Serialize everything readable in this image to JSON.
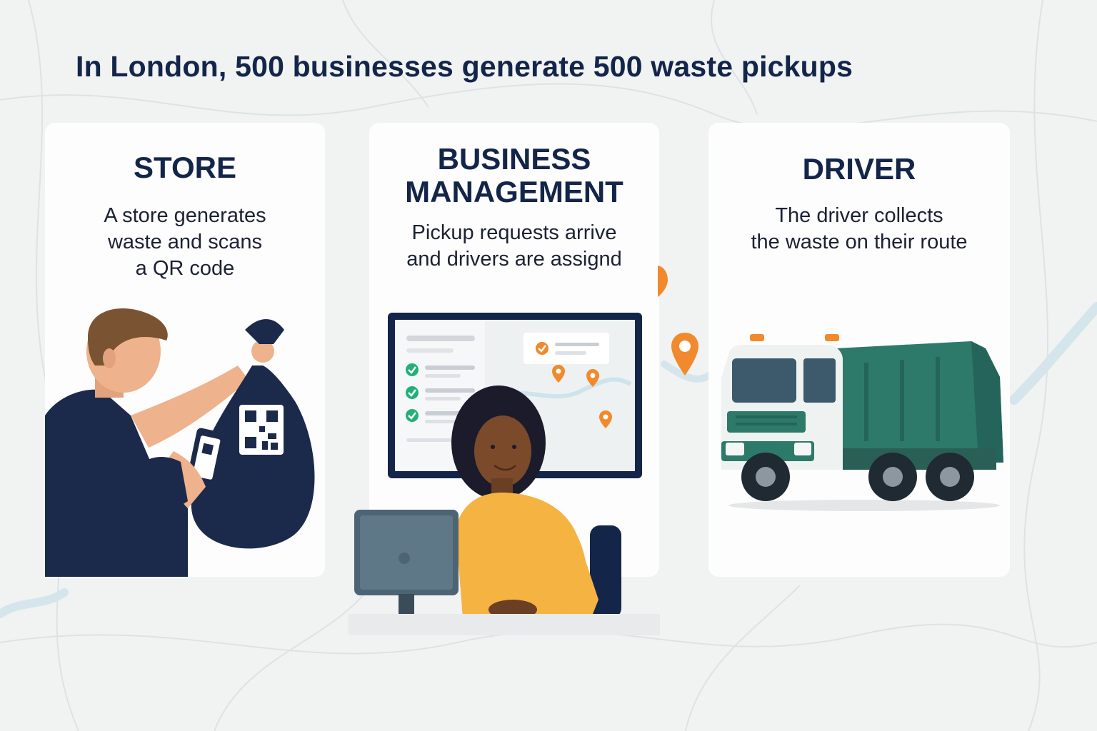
{
  "headline": "In London, 500 businesses generate 500 waste pickups",
  "colors": {
    "navy": "#14254a",
    "orange": "#f08a2c",
    "green": "#22b07a",
    "truck_green": "#2e7a6a",
    "shirt_yellow": "#f5b342",
    "background": "#f1f2f2"
  },
  "cards": {
    "store": {
      "title": "STORE",
      "desc_lines": [
        "A store generates",
        "waste and scans",
        "a QR code"
      ]
    },
    "management": {
      "title_lines": [
        "BUSINESS",
        "MANAGEMENT"
      ],
      "desc_lines": [
        "Pickup requests arrive",
        "and drivers are assignd"
      ]
    },
    "driver": {
      "title": "DRIVER",
      "desc_lines": [
        "The driver collects",
        "the waste on their route"
      ]
    }
  },
  "icons": [
    "map-pin-icon",
    "check-icon",
    "qr-code-icon",
    "garbage-truck-icon"
  ]
}
